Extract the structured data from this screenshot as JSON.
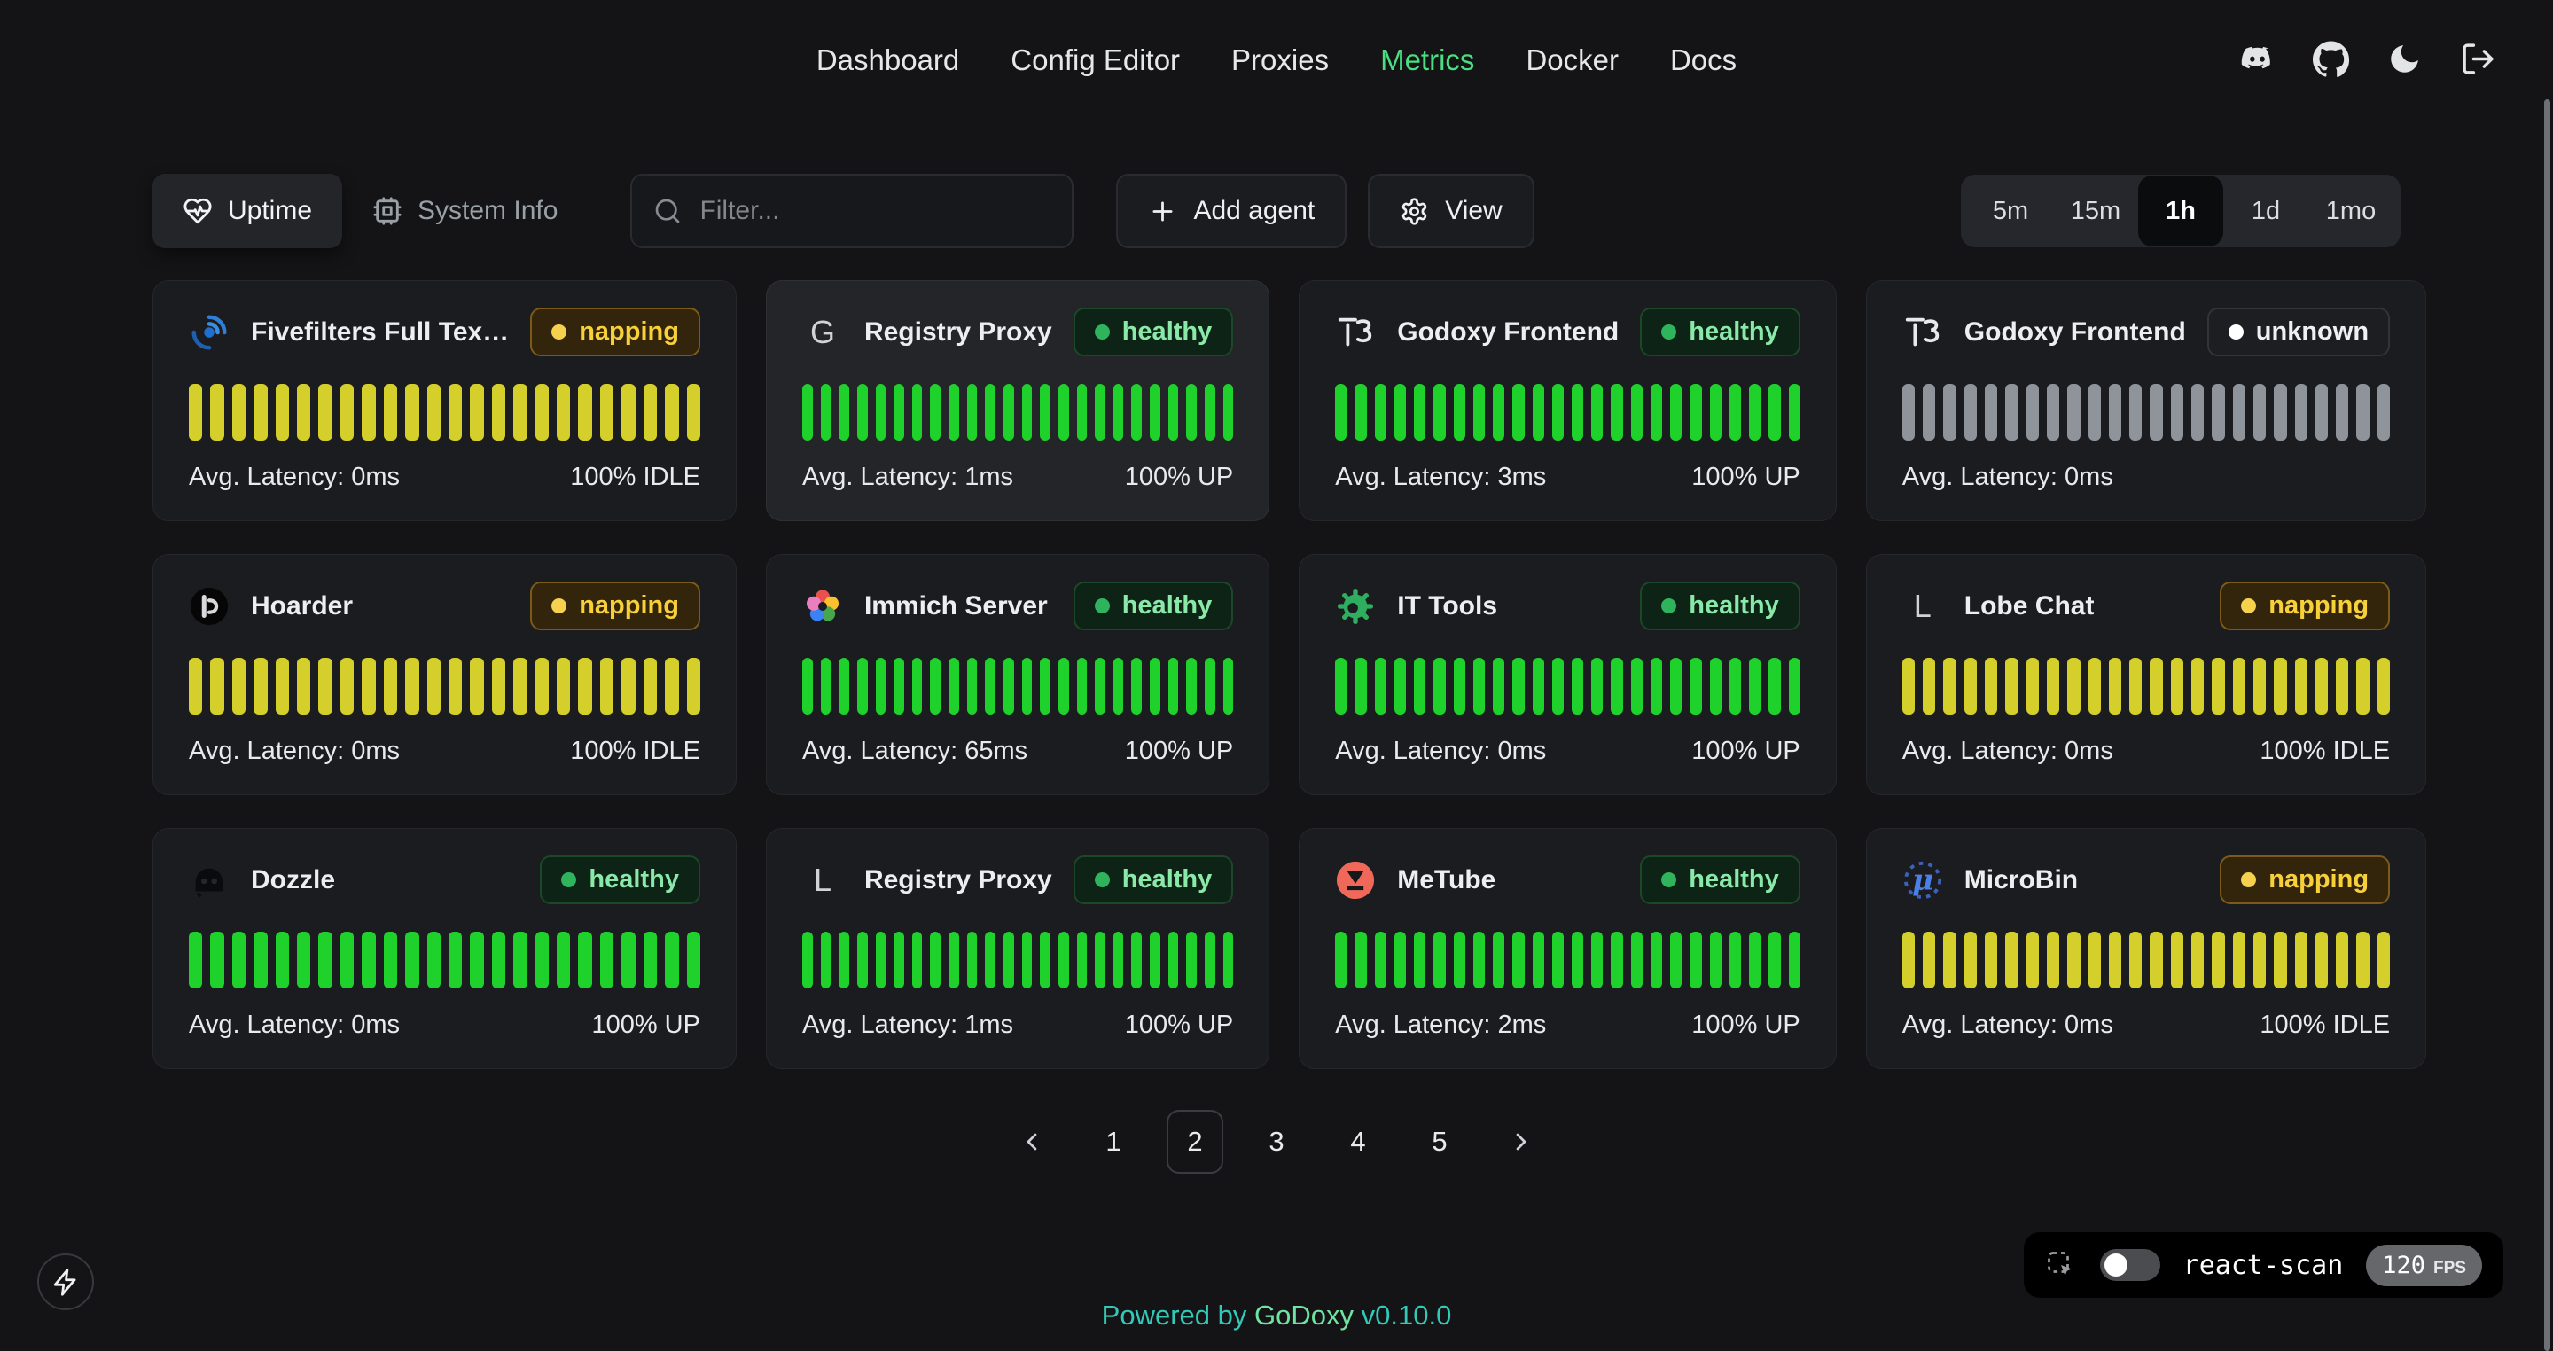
{
  "nav": {
    "items": [
      {
        "label": "Dashboard",
        "active": false
      },
      {
        "label": "Config Editor",
        "active": false
      },
      {
        "label": "Proxies",
        "active": false
      },
      {
        "label": "Metrics",
        "active": true
      },
      {
        "label": "Docker",
        "active": false
      },
      {
        "label": "Docs",
        "active": false
      }
    ],
    "action_icons": [
      "discord",
      "github",
      "moon",
      "logout"
    ]
  },
  "toolbar": {
    "tabs": [
      {
        "label": "Uptime",
        "icon": "heart-pulse",
        "active": true
      },
      {
        "label": "System Info",
        "icon": "cpu",
        "active": false
      }
    ],
    "filter_placeholder": "Filter...",
    "add_agent_label": "Add agent",
    "view_label": "View"
  },
  "time_range": {
    "options": [
      "5m",
      "15m",
      "1h",
      "1d",
      "1mo"
    ],
    "selected": "1h"
  },
  "cards": [
    {
      "title": "Fivefilters Full Tex…",
      "status": "napping",
      "status_label": "napping",
      "latency": "Avg. Latency: 0ms",
      "uptime": "100% IDLE",
      "bars": 24,
      "bar_status": "idle",
      "icon": {
        "kind": "logo",
        "name": "fivefilters-logo"
      },
      "highlight": false
    },
    {
      "title": "Registry Proxy",
      "status": "healthy",
      "status_label": "healthy",
      "latency": "Avg. Latency: 1ms",
      "uptime": "100% UP",
      "bars": 24,
      "bar_status": "up",
      "icon": {
        "kind": "letter",
        "value": "G"
      },
      "highlight": true
    },
    {
      "title": "Godoxy Frontend",
      "status": "healthy",
      "status_label": "healthy",
      "latency": "Avg. Latency: 3ms",
      "uptime": "100% UP",
      "bars": 24,
      "bar_status": "up",
      "icon": {
        "kind": "logo",
        "name": "t3-logo"
      },
      "highlight": false
    },
    {
      "title": "Godoxy Frontend",
      "status": "unknown",
      "status_label": "unknown",
      "latency": "Avg. Latency: 0ms",
      "uptime": "",
      "bars": 24,
      "bar_status": "unknown",
      "icon": {
        "kind": "logo",
        "name": "t3-logo"
      },
      "highlight": false
    },
    {
      "title": "Hoarder",
      "status": "napping",
      "status_label": "napping",
      "latency": "Avg. Latency: 0ms",
      "uptime": "100% IDLE",
      "bars": 24,
      "bar_status": "idle",
      "icon": {
        "kind": "logo",
        "name": "hoarder-logo"
      },
      "highlight": false
    },
    {
      "title": "Immich Server",
      "status": "healthy",
      "status_label": "healthy",
      "latency": "Avg. Latency: 65ms",
      "uptime": "100% UP",
      "bars": 24,
      "bar_status": "up",
      "icon": {
        "kind": "logo",
        "name": "immich-logo"
      },
      "highlight": false
    },
    {
      "title": "IT Tools",
      "status": "healthy",
      "status_label": "healthy",
      "latency": "Avg. Latency: 0ms",
      "uptime": "100% UP",
      "bars": 24,
      "bar_status": "up",
      "icon": {
        "kind": "logo",
        "name": "it-tools-logo"
      },
      "highlight": false
    },
    {
      "title": "Lobe Chat",
      "status": "napping",
      "status_label": "napping",
      "latency": "Avg. Latency: 0ms",
      "uptime": "100% IDLE",
      "bars": 24,
      "bar_status": "idle",
      "icon": {
        "kind": "letter",
        "value": "L"
      },
      "highlight": false
    },
    {
      "title": "Dozzle",
      "status": "healthy",
      "status_label": "healthy",
      "latency": "Avg. Latency: 0ms",
      "uptime": "100% UP",
      "bars": 24,
      "bar_status": "up",
      "icon": {
        "kind": "logo",
        "name": "dozzle-logo"
      },
      "highlight": false
    },
    {
      "title": "Registry Proxy",
      "status": "healthy",
      "status_label": "healthy",
      "latency": "Avg. Latency: 1ms",
      "uptime": "100% UP",
      "bars": 24,
      "bar_status": "up",
      "icon": {
        "kind": "letter",
        "value": "L"
      },
      "highlight": false
    },
    {
      "title": "MeTube",
      "status": "healthy",
      "status_label": "healthy",
      "latency": "Avg. Latency: 2ms",
      "uptime": "100% UP",
      "bars": 24,
      "bar_status": "up",
      "icon": {
        "kind": "logo",
        "name": "metube-logo"
      },
      "highlight": false
    },
    {
      "title": "MicroBin",
      "status": "napping",
      "status_label": "napping",
      "latency": "Avg. Latency: 0ms",
      "uptime": "100% IDLE",
      "bars": 24,
      "bar_status": "idle",
      "icon": {
        "kind": "logo",
        "name": "microbin-logo"
      },
      "highlight": false
    }
  ],
  "pagination": {
    "pages": [
      "1",
      "2",
      "3",
      "4",
      "5"
    ],
    "active": "2"
  },
  "footer": {
    "prefix": "Powered by",
    "brand": "GoDoxy",
    "version": "v0.10.0"
  },
  "react_scan": {
    "label": "react-scan",
    "fps": "120",
    "fps_unit": "FPS",
    "enabled": false
  },
  "colors": {
    "accent_green": "#4ade80",
    "bar_up": "#1fd22b",
    "bar_idle": "#d5cf2b",
    "bar_unknown": "#8f939a",
    "napping_text": "#f8d03a",
    "healthy_text": "#8ae9a9",
    "unknown_text": "#eef0f2"
  }
}
